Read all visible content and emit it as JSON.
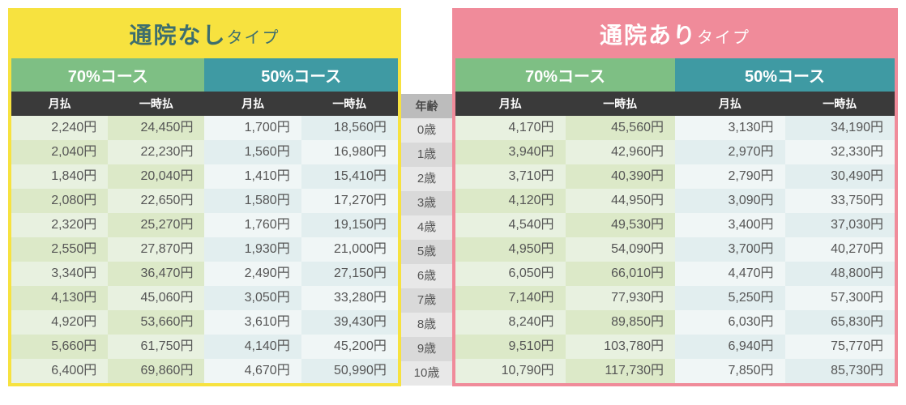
{
  "left": {
    "title_main": "通院なし",
    "title_sub": "タイプ",
    "border_color": "#f7e23f",
    "title_bg": "#f7e23f",
    "title_color": "#3d6e6e",
    "courses": [
      {
        "label": "70%コース",
        "bg": "#7ebf84"
      },
      {
        "label": "50%コース",
        "bg": "#3f9aa3"
      }
    ],
    "sub_headers": [
      "月払",
      "一時払",
      "月払",
      "一時払"
    ]
  },
  "right": {
    "title_main": "通院あり",
    "title_sub": "タイプ",
    "border_color": "#f08b9a",
    "title_bg": "#f08b9a",
    "title_color": "#ffffff",
    "courses": [
      {
        "label": "70%コース",
        "bg": "#7ebf84"
      },
      {
        "label": "50%コース",
        "bg": "#3f9aa3"
      }
    ],
    "sub_headers": [
      "月払",
      "一時払",
      "月払",
      "一時払"
    ]
  },
  "age_header": "年齢",
  "ages": [
    "0歳",
    "1歳",
    "2歳",
    "3歳",
    "4歳",
    "5歳",
    "6歳",
    "7歳",
    "8歳",
    "9歳",
    "10歳"
  ],
  "rows_left": [
    [
      "2,240円",
      "24,450円",
      "1,700円",
      "18,560円"
    ],
    [
      "2,040円",
      "22,230円",
      "1,560円",
      "16,980円"
    ],
    [
      "1,840円",
      "20,040円",
      "1,410円",
      "15,410円"
    ],
    [
      "2,080円",
      "22,650円",
      "1,580円",
      "17,270円"
    ],
    [
      "2,320円",
      "25,270円",
      "1,760円",
      "19,150円"
    ],
    [
      "2,550円",
      "27,870円",
      "1,930円",
      "21,000円"
    ],
    [
      "3,340円",
      "36,470円",
      "2,490円",
      "27,150円"
    ],
    [
      "4,130円",
      "45,060円",
      "3,050円",
      "33,280円"
    ],
    [
      "4,920円",
      "53,660円",
      "3,610円",
      "39,430円"
    ],
    [
      "5,660円",
      "61,750円",
      "4,140円",
      "45,200円"
    ],
    [
      "6,400円",
      "69,860円",
      "4,670円",
      "50,990円"
    ]
  ],
  "rows_right": [
    [
      "4,170円",
      "45,560円",
      "3,130円",
      "34,190円"
    ],
    [
      "3,940円",
      "42,960円",
      "2,970円",
      "32,330円"
    ],
    [
      "3,710円",
      "40,390円",
      "2,790円",
      "30,490円"
    ],
    [
      "4,120円",
      "44,950円",
      "3,090円",
      "33,750円"
    ],
    [
      "4,540円",
      "49,530円",
      "3,400円",
      "37,030円"
    ],
    [
      "4,950円",
      "54,090円",
      "3,700円",
      "40,270円"
    ],
    [
      "6,050円",
      "66,010円",
      "4,470円",
      "48,800円"
    ],
    [
      "7,140円",
      "77,930円",
      "5,250円",
      "57,300円"
    ],
    [
      "8,240円",
      "89,850円",
      "6,030円",
      "65,830円"
    ],
    [
      "9,510円",
      "103,780円",
      "6,940円",
      "75,770円"
    ],
    [
      "10,790円",
      "117,730円",
      "7,850円",
      "85,730円"
    ]
  ],
  "column_bg_classes": [
    "bg-g1",
    "bg-g2",
    "bg-b1",
    "bg-b2"
  ],
  "column_bg_classes_alt": [
    "bg-g2",
    "bg-g1",
    "bg-b2",
    "bg-b1"
  ]
}
